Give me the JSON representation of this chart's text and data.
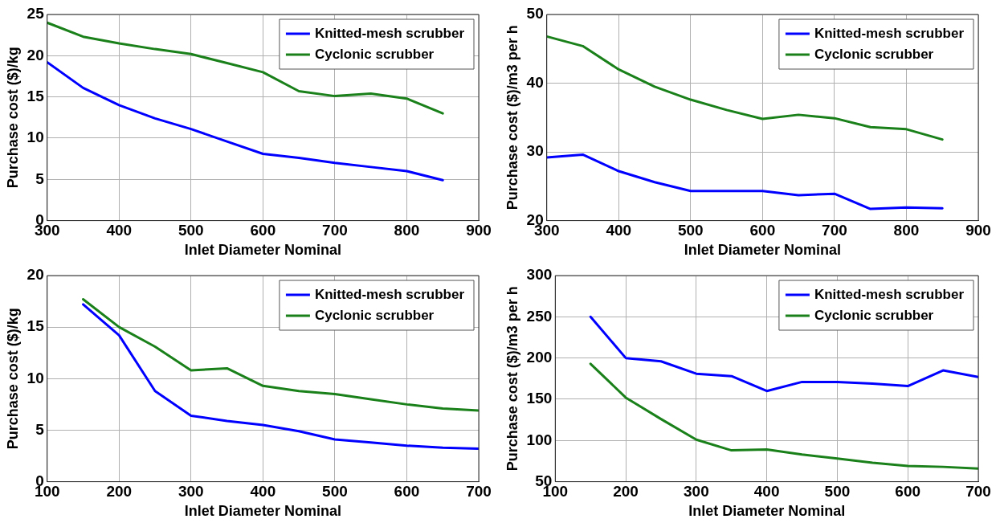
{
  "chart_data": [
    {
      "type": "line",
      "xlabel": "Inlet Diameter Nominal",
      "ylabel": "Purchase cost ($)/kg",
      "x": [
        300,
        350,
        400,
        450,
        500,
        550,
        600,
        650,
        700,
        750,
        800,
        850
      ],
      "xlim": [
        300,
        900
      ],
      "xticks": [
        300,
        400,
        500,
        600,
        700,
        800,
        900
      ],
      "ylim": [
        0,
        25
      ],
      "yticks": [
        0,
        5,
        10,
        15,
        20,
        25
      ],
      "grid": true,
      "legend": "top right",
      "marker": "none",
      "line_style": "solid",
      "series": [
        {
          "name": "Knitted-mesh scrubber",
          "color": "#0000ff",
          "values": [
            19.2,
            16.1,
            14,
            12.4,
            11.1,
            9.6,
            8.1,
            7.6,
            7.0,
            6.5,
            6.0,
            4.9
          ]
        },
        {
          "name": "Cyclonic scrubber",
          "color": "#1a801a",
          "values": [
            24,
            22.3,
            21.5,
            20.8,
            20.2,
            19.1,
            18,
            15.7,
            15.1,
            15.4,
            14.8,
            13
          ]
        }
      ]
    },
    {
      "type": "line",
      "xlabel": "Inlet Diameter Nominal",
      "ylabel": "Purchase cost ($)/m3 per h",
      "x": [
        300,
        350,
        400,
        450,
        500,
        550,
        600,
        650,
        700,
        750,
        800,
        850
      ],
      "xlim": [
        300,
        900
      ],
      "xticks": [
        300,
        400,
        500,
        600,
        700,
        800,
        900
      ],
      "ylim": [
        20,
        50
      ],
      "yticks": [
        20,
        30,
        40,
        50
      ],
      "grid": true,
      "legend": "top right",
      "marker": "none",
      "line_style": "solid",
      "series": [
        {
          "name": "Knitted-mesh scrubber",
          "color": "#0000ff",
          "values": [
            29.2,
            29.6,
            27.2,
            25.6,
            24.3,
            24.3,
            24.3,
            23.7,
            23.9,
            21.7,
            21.9,
            21.8
          ]
        },
        {
          "name": "Cyclonic scrubber",
          "color": "#1a801a",
          "values": [
            46.8,
            45.4,
            42,
            39.5,
            37.6,
            36.1,
            34.8,
            35.4,
            34.9,
            33.6,
            33.3,
            31.8
          ]
        }
      ]
    },
    {
      "type": "line",
      "xlabel": "Inlet Diameter Nominal",
      "ylabel": "Purchase cost ($)/kg",
      "x": [
        150,
        200,
        250,
        300,
        350,
        400,
        450,
        500,
        550,
        600,
        650,
        700
      ],
      "xlim": [
        100,
        700
      ],
      "xticks": [
        100,
        200,
        300,
        400,
        500,
        600,
        700
      ],
      "ylim": [
        0,
        20
      ],
      "yticks": [
        0,
        5,
        10,
        15,
        20
      ],
      "grid": true,
      "legend": "top right",
      "marker": "none",
      "line_style": "solid",
      "series": [
        {
          "name": "Knitted-mesh scrubber",
          "color": "#0000ff",
          "values": [
            17.2,
            14.2,
            8.8,
            6.4,
            5.9,
            5.5,
            4.9,
            4.1,
            3.8,
            3.5,
            3.3,
            3.2
          ]
        },
        {
          "name": "Cyclonic scrubber",
          "color": "#1a801a",
          "values": [
            17.7,
            15,
            13.1,
            10.8,
            11,
            9.3,
            8.8,
            8.5,
            8,
            7.5,
            7.1,
            6.9
          ]
        }
      ]
    },
    {
      "type": "line",
      "xlabel": "Inlet Diameter Nominal",
      "ylabel": "Purchase cost ($)/m3 per h",
      "x": [
        150,
        200,
        250,
        300,
        350,
        400,
        450,
        500,
        550,
        600,
        650,
        700
      ],
      "xlim": [
        100,
        700
      ],
      "xticks": [
        100,
        200,
        300,
        400,
        500,
        600,
        700
      ],
      "ylim": [
        50,
        300
      ],
      "yticks": [
        50,
        100,
        150,
        200,
        250,
        300
      ],
      "grid": true,
      "legend": "top right",
      "marker": "none",
      "line_style": "solid",
      "series": [
        {
          "name": "Knitted-mesh scrubber",
          "color": "#0000ff",
          "values": [
            250,
            200,
            196,
            181,
            178,
            160,
            171,
            171,
            169,
            166,
            185,
            177
          ]
        },
        {
          "name": "Cyclonic scrubber",
          "color": "#1a801a",
          "values": [
            193,
            152,
            126,
            101,
            88,
            89,
            83,
            78,
            73,
            69,
            68,
            66
          ]
        }
      ]
    }
  ]
}
